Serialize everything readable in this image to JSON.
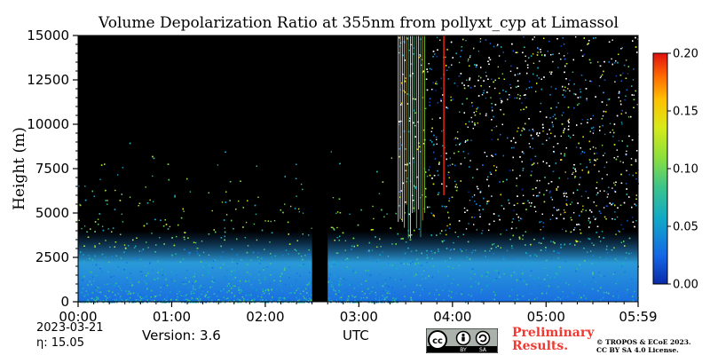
{
  "header": {
    "title": "Volume Depolarization Ratio at 355nm from pollyxt_cyp at Limassol"
  },
  "footer": {
    "date": "2023-03-21",
    "eta": "η:  15.05",
    "version": "Version: 3.6",
    "xlabel": "UTC",
    "preliminary_line1": "Preliminary",
    "preliminary_line2": "Results.",
    "copyright_line1": "© TROPOS & ECoE 2023.",
    "copyright_line2": "CC BY SA 4.0 License.",
    "license_badge": {
      "by": "BY",
      "sa": "SA"
    },
    "colors": {
      "preliminary": "#ee3a32"
    }
  },
  "chart_data": {
    "type": "heatmap",
    "title": "Volume Depolarization Ratio at 355nm from pollyxt_cyp at Limassol",
    "xlabel": "UTC",
    "ylabel": "Height (m)",
    "x_ticks": [
      "00:00",
      "01:00",
      "02:00",
      "03:00",
      "04:00",
      "05:00",
      "05:59"
    ],
    "x_range_minutes": [
      0,
      359
    ],
    "y_ticks": [
      0,
      2500,
      5000,
      7500,
      10000,
      12500,
      15000
    ],
    "ylim": [
      0,
      15000
    ],
    "colorbar": {
      "min": 0.0,
      "max": 0.2,
      "ticks": [
        "0.00",
        "0.05",
        "0.10",
        "0.15",
        "0.20"
      ],
      "colormap": "jet"
    },
    "features": [
      {
        "name": "no data gap",
        "x_start_minutes": 150,
        "x_end_minutes": 160
      },
      {
        "name": "vertical streaks",
        "x_start_minutes": 205,
        "x_end_minutes": 235
      },
      {
        "name": "near-surface layer",
        "height_top_m": 2500,
        "typical_value": 0.02
      }
    ],
    "background_color": "#000000"
  }
}
